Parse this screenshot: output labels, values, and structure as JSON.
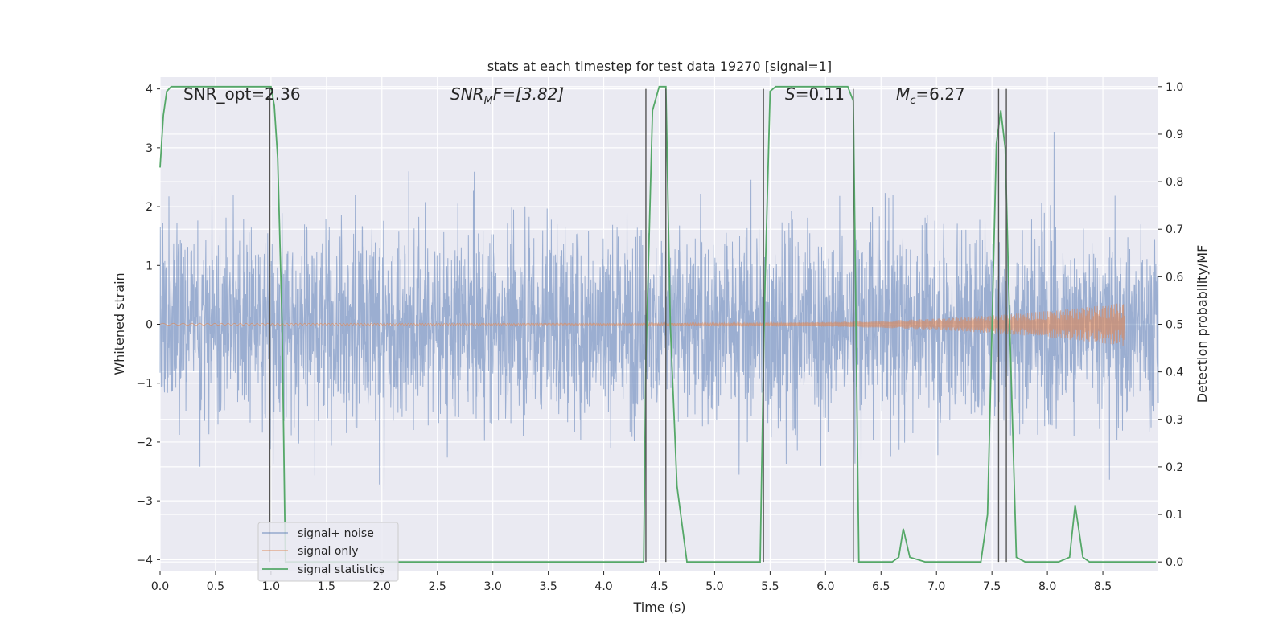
{
  "chart_data": {
    "type": "line",
    "title": "stats at each timestep for test data 19270 [signal=1]",
    "xlabel": "Time (s)",
    "ylabel": "Whitened strain",
    "ylabel_right": "Detection probability/MF",
    "xlim": [
      0.0,
      9.0
    ],
    "ylim": [
      -4.2,
      4.2
    ],
    "ylim_right": [
      -0.02,
      1.02
    ],
    "x_ticks": [
      "0.0",
      "0.5",
      "1.0",
      "1.5",
      "2.0",
      "2.5",
      "3.0",
      "3.5",
      "4.0",
      "4.5",
      "5.0",
      "5.5",
      "6.0",
      "6.5",
      "7.0",
      "7.5",
      "8.0",
      "8.5"
    ],
    "y_ticks_left": [
      "4",
      "3",
      "2",
      "1",
      "0",
      "−1",
      "−2",
      "−3",
      "−4"
    ],
    "y_ticks_right": [
      "1.0",
      "0.9",
      "0.8",
      "0.7",
      "0.6",
      "0.5",
      "0.4",
      "0.3",
      "0.2",
      "0.1",
      "0.0"
    ],
    "grid": true,
    "legend_position": "lower-left",
    "annotations": {
      "snr_opt": "SNR_opt=2.36",
      "snr_mf_main": "SNR",
      "snr_mf_sub": "M",
      "snr_mf_rest": "F=[3.82]",
      "s_main": "S",
      "s_rest": "=0.11",
      "mc_main": "M",
      "mc_sub": "c",
      "mc_rest": "=6.27"
    },
    "series": [
      {
        "name": "signal+ noise",
        "color": "#4c72b0",
        "description_values": "whitened strain noise, approx range -3.8 to 4.0",
        "amplitude_envelope": [
          2.2,
          2.6,
          3.3,
          2.5,
          2.3,
          2.7,
          2.4,
          3.2,
          2.8,
          2.5,
          3.9,
          2.6,
          2.4,
          3.0,
          2.7,
          2.5,
          2.6,
          2.9
        ]
      },
      {
        "name": "signal only",
        "color": "#dd8452",
        "chirp_start": 4.4,
        "chirp_end": 8.7,
        "max_amplitude": 0.35
      },
      {
        "name": "signal statistics",
        "color": "#55a868",
        "x": [
          0.0,
          0.03,
          0.06,
          0.1,
          0.2,
          0.3,
          0.4,
          0.5,
          0.6,
          0.7,
          0.8,
          0.9,
          0.95,
          1.0,
          1.03,
          1.06,
          1.1,
          1.13,
          1.2,
          1.3,
          4.2,
          4.36,
          4.38,
          4.44,
          4.5,
          4.56,
          4.6,
          4.66,
          4.75,
          5.35,
          5.41,
          5.45,
          5.5,
          5.55,
          6.0,
          6.2,
          6.25,
          6.3,
          6.5,
          6.6,
          6.66,
          6.7,
          6.76,
          6.9,
          7.1,
          7.4,
          7.46,
          7.54,
          7.58,
          7.62,
          7.66,
          7.72,
          7.8,
          7.9,
          8.1,
          8.2,
          8.25,
          8.32,
          8.38,
          8.5,
          8.98
        ],
        "values": [
          0.83,
          0.94,
          0.99,
          1.0,
          1.0,
          1.0,
          1.0,
          1.0,
          1.0,
          1.0,
          1.0,
          1.0,
          1.0,
          1.0,
          0.96,
          0.85,
          0.5,
          0.0,
          0.0,
          0.0,
          0.0,
          0.0,
          0.43,
          0.95,
          1.0,
          1.0,
          0.5,
          0.16,
          0.0,
          0.0,
          0.0,
          0.55,
          0.99,
          1.0,
          1.0,
          1.0,
          0.97,
          0.0,
          0.0,
          0.0,
          0.01,
          0.07,
          0.01,
          0.0,
          0.0,
          0.0,
          0.1,
          0.88,
          0.95,
          0.87,
          0.5,
          0.01,
          0.0,
          0.0,
          0.0,
          0.01,
          0.12,
          0.01,
          0.0,
          0.0,
          0.0
        ]
      }
    ],
    "vertical_lines_x": [
      0.99,
      4.38,
      4.56,
      5.44,
      6.25,
      7.56,
      7.63
    ]
  },
  "legend": {
    "items": [
      {
        "label": "signal+ noise",
        "color": "#4c72b0"
      },
      {
        "label": "signal only",
        "color": "#dd8452"
      },
      {
        "label": "signal statistics",
        "color": "#55a868"
      }
    ]
  }
}
